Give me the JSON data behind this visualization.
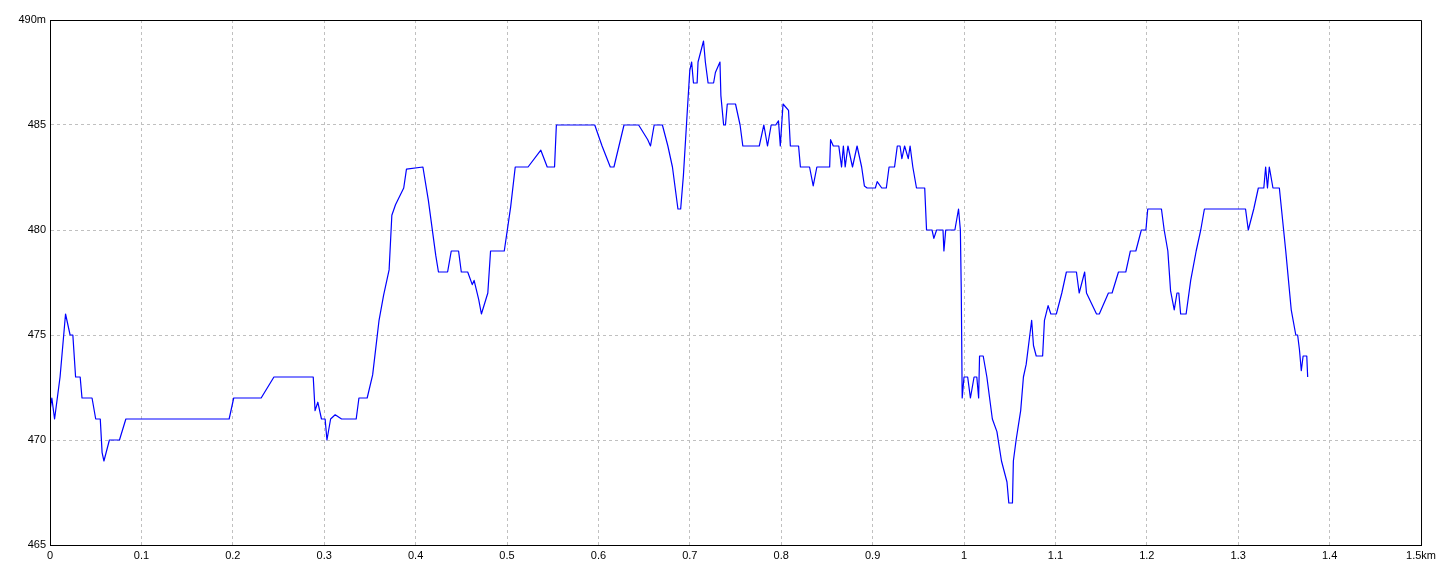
{
  "chart_data": {
    "type": "line",
    "xlim": [
      0,
      1.5
    ],
    "ylim": [
      465,
      490
    ],
    "xticks": [
      0,
      0.1,
      0.2,
      0.3,
      0.4,
      0.5,
      0.6,
      0.7,
      0.8,
      0.9,
      1,
      1.1,
      1.2,
      1.3,
      1.4,
      {
        "value": 1.5,
        "label": "1.5km"
      }
    ],
    "yticks": [
      465,
      470,
      475,
      480,
      485,
      {
        "value": 490,
        "label": "490m"
      }
    ],
    "grid": true,
    "legend": false,
    "marker": "none",
    "line_style": "solid",
    "series": [
      {
        "color": "#0000ff",
        "x": [
          0,
          0.002,
          0.005,
          0.011,
          0.017,
          0.022,
          0.025,
          0.028,
          0.033,
          0.035,
          0.046,
          0.05,
          0.055,
          0.057,
          0.059,
          0.065,
          0.076,
          0.083,
          0.196,
          0.201,
          0.231,
          0.245,
          0.288,
          0.29,
          0.293,
          0.297,
          0.301,
          0.303,
          0.307,
          0.312,
          0.319,
          0.335,
          0.338,
          0.347,
          0.353,
          0.36,
          0.365,
          0.371,
          0.374,
          0.378,
          0.387,
          0.39,
          0.408,
          0.414,
          0.422,
          0.425,
          0.435,
          0.439,
          0.447,
          0.45,
          0.457,
          0.462,
          0.464,
          0.469,
          0.472,
          0.479,
          0.482,
          0.497,
          0.504,
          0.509,
          0.523,
          0.537,
          0.544,
          0.552,
          0.554,
          0.596,
          0.604,
          0.613,
          0.617,
          0.628,
          0.644,
          0.654,
          0.657,
          0.661,
          0.67,
          0.676,
          0.681,
          0.687,
          0.69,
          0.693,
          0.698,
          0.7,
          0.702,
          0.704,
          0.708,
          0.709,
          0.715,
          0.717,
          0.72,
          0.726,
          0.728,
          0.733,
          0.734,
          0.737,
          0.739,
          0.741,
          0.75,
          0.755,
          0.758,
          0.776,
          0.781,
          0.785,
          0.789,
          0.794,
          0.797,
          0.799,
          0.802,
          0.808,
          0.81,
          0.819,
          0.821,
          0.831,
          0.835,
          0.839,
          0.853,
          0.854,
          0.857,
          0.863,
          0.866,
          0.868,
          0.87,
          0.873,
          0.878,
          0.883,
          0.888,
          0.891,
          0.894,
          0.903,
          0.905,
          0.91,
          0.915,
          0.918,
          0.924,
          0.927,
          0.93,
          0.932,
          0.935,
          0.939,
          0.941,
          0.944,
          0.948,
          0.957,
          0.959,
          0.965,
          0.967,
          0.97,
          0.977,
          0.978,
          0.98,
          0.99,
          0.994,
          0.996,
          0.997,
          0.998,
          1,
          1.004,
          1.007,
          1.011,
          1.014,
          1.016,
          1.017,
          1.021,
          1.025,
          1.031,
          1.036,
          1.041,
          1.047,
          1.049,
          1.053,
          1.054,
          1.057,
          1.062,
          1.065,
          1.068,
          1.072,
          1.074,
          1.076,
          1.079,
          1.086,
          1.088,
          1.092,
          1.095,
          1.101,
          1.107,
          1.112,
          1.123,
          1.126,
          1.132,
          1.134,
          1.145,
          1.148,
          1.158,
          1.162,
          1.169,
          1.177,
          1.182,
          1.188,
          1.194,
          1.199,
          1.201,
          1.216,
          1.219,
          1.223,
          1.226,
          1.23,
          1.233,
          1.235,
          1.237,
          1.243,
          1.248,
          1.254,
          1.259,
          1.263,
          1.308,
          1.311,
          1.317,
          1.322,
          1.328,
          1.33,
          1.332,
          1.334,
          1.338,
          1.345,
          1.352,
          1.358,
          1.363,
          1.365,
          1.367,
          1.369,
          1.371,
          1.375,
          1.376
        ],
        "values": [
          471.4,
          472,
          471,
          473,
          476,
          475,
          475,
          473,
          473,
          472,
          472,
          471,
          471,
          469.4,
          469,
          470,
          470,
          471,
          471,
          472,
          472,
          473,
          473,
          471.4,
          471.8,
          471,
          471,
          470,
          471,
          471.2,
          471,
          471,
          472,
          472,
          473.1,
          475.7,
          476.9,
          478.1,
          480.7,
          481.2,
          482,
          482.9,
          483,
          481.4,
          478.8,
          478,
          478,
          479,
          479,
          478,
          478,
          477.4,
          477.6,
          476.7,
          476,
          477,
          479,
          479,
          481.1,
          483,
          483,
          483.8,
          483,
          483,
          485,
          485,
          484,
          483,
          483,
          485,
          485,
          484.3,
          484,
          485,
          485,
          484,
          483,
          481,
          481,
          482.6,
          486.2,
          487.6,
          488,
          487,
          487,
          488,
          489,
          488,
          487,
          487,
          487.5,
          488,
          486.4,
          485,
          485,
          486,
          486,
          485,
          484,
          484,
          485,
          484,
          485,
          485,
          485.2,
          484,
          486,
          485.7,
          484,
          484,
          483,
          483,
          482.1,
          483,
          483,
          484.3,
          484,
          484,
          483,
          484,
          483,
          484,
          483,
          484,
          483,
          482.1,
          482,
          482,
          482.3,
          482,
          482,
          483,
          483,
          484,
          484,
          483.4,
          484,
          483.4,
          484,
          483,
          482,
          482,
          480,
          480,
          479.6,
          480,
          480,
          479,
          480,
          480,
          481,
          480,
          477.1,
          472,
          473,
          473,
          472,
          473,
          473,
          472,
          474,
          474,
          473,
          471,
          470.4,
          469,
          468,
          467,
          467,
          469,
          470,
          471.4,
          473,
          473.6,
          475,
          475.7,
          474.5,
          474,
          474,
          475.7,
          476.4,
          476,
          476,
          477,
          478,
          478,
          477,
          478,
          477,
          476,
          476,
          477,
          477,
          478,
          478,
          479,
          479,
          480,
          480,
          481,
          481,
          480,
          479,
          477.1,
          476.2,
          477,
          477,
          476,
          476,
          477.6,
          479,
          480,
          481,
          481,
          480,
          481,
          482,
          482,
          483,
          482,
          483,
          482,
          482,
          479,
          476.2,
          475,
          475,
          474.3,
          473.3,
          474,
          474,
          473
        ]
      }
    ]
  }
}
